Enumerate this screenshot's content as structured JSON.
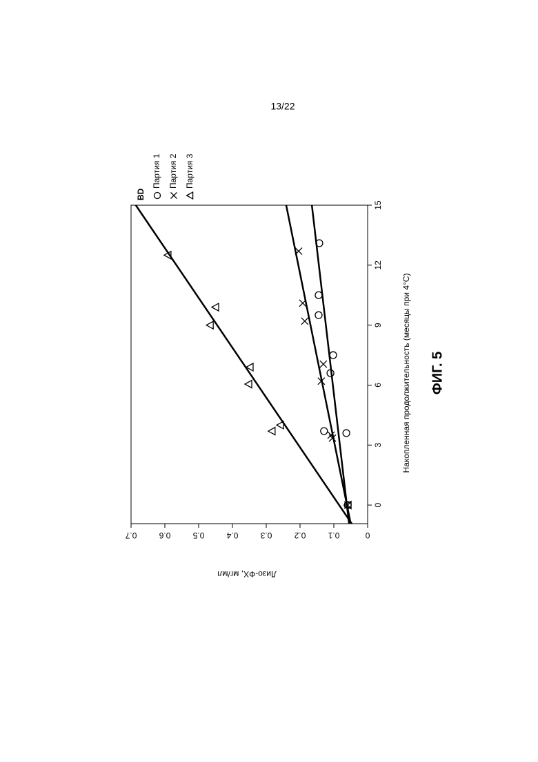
{
  "page_number": "13/22",
  "figure_label": "ФИГ. 5",
  "chart_data": {
    "type": "scatter",
    "x_label": "Накопленная продолжительность (месяцы при 4°C)",
    "y_label": "Лизо-ФХ, мг/мл",
    "legend_title": "BD",
    "xlim": [
      -0.93,
      15
    ],
    "ylim": [
      0,
      0.7
    ],
    "xticks": [
      0,
      3,
      6,
      9,
      12,
      15
    ],
    "yticks": [
      0,
      0.1,
      0.2,
      0.3,
      0.4,
      0.5,
      0.6,
      0.7
    ],
    "trend_x": [
      -0.93,
      15
    ],
    "series": [
      {
        "name": "Партия 1",
        "marker": "circle",
        "color": "#000000",
        "x": [
          0,
          3.6,
          3.7,
          6.6,
          7.5,
          9.5,
          10.5,
          13.1
        ],
        "values": [
          0.059,
          0.063,
          0.129,
          0.11,
          0.102,
          0.145,
          0.145,
          0.143
        ],
        "trend_values": [
          0.055,
          0.165
        ]
      },
      {
        "name": "Партия 2",
        "marker": "x",
        "color": "#000000",
        "x": [
          0,
          3.35,
          3.5,
          6.2,
          7.05,
          9.2,
          10.1,
          12.7
        ],
        "values": [
          0.059,
          0.104,
          0.108,
          0.137,
          0.131,
          0.186,
          0.192,
          0.204
        ],
        "trend_values": [
          0.05,
          0.241
        ]
      },
      {
        "name": "Партия 3",
        "marker": "triangle",
        "color": "#000000",
        "x": [
          0,
          3.7,
          4.0,
          6.05,
          6.9,
          9.0,
          9.9,
          12.5
        ],
        "values": [
          0.057,
          0.282,
          0.257,
          0.351,
          0.347,
          0.465,
          0.449,
          0.59
        ],
        "trend_values": [
          0.047,
          0.686
        ]
      }
    ]
  }
}
